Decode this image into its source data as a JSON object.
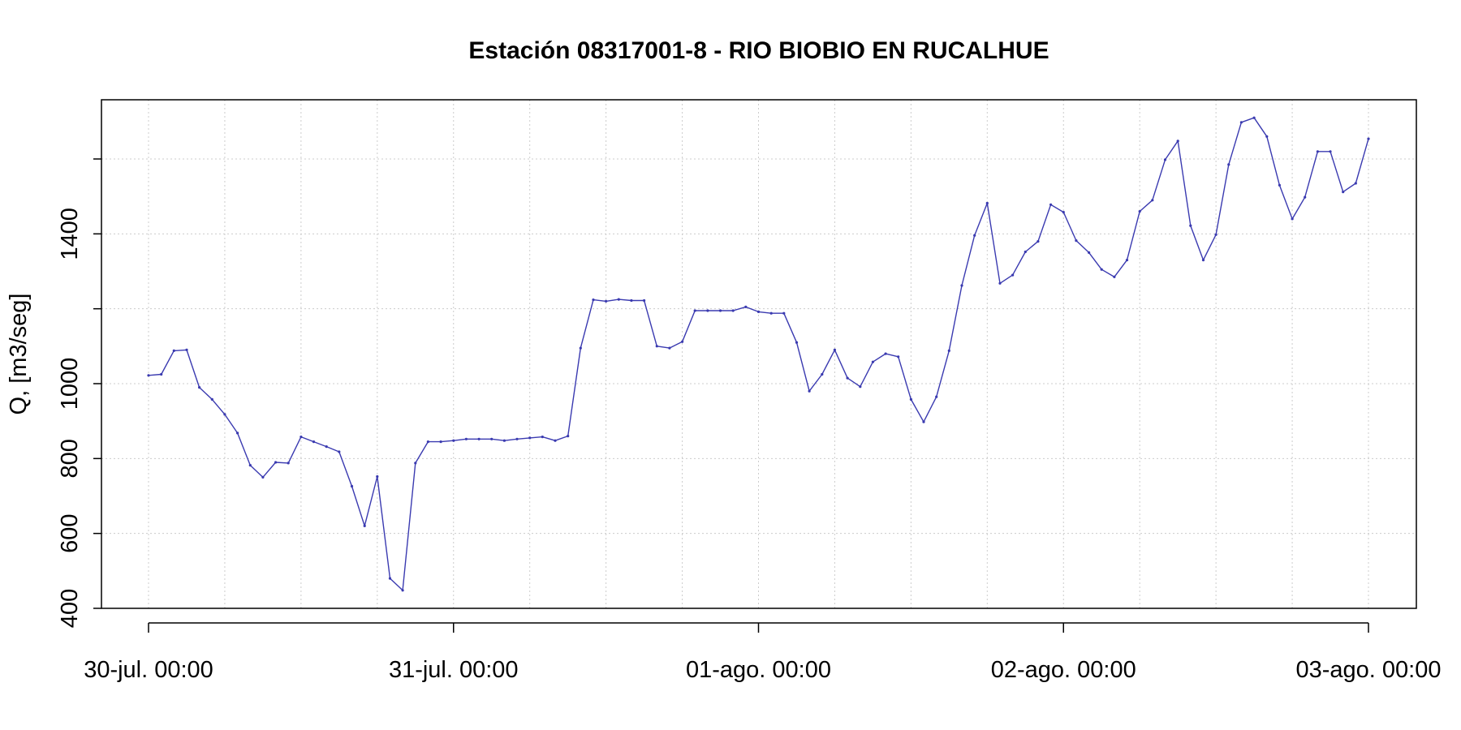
{
  "chart_data": {
    "type": "line",
    "title": "Estación 08317001-8 - RIO BIOBIO EN RUCALHUE",
    "xlabel": "",
    "ylabel": "Q, [m3/seg]",
    "ylim": [
      400,
      1750
    ],
    "yticks": [
      400,
      600,
      800,
      1000,
      1200,
      1400,
      1600
    ],
    "ytick_labels": [
      "400",
      "600",
      "800",
      "1000",
      "",
      "1400",
      ""
    ],
    "xlim": [
      "30-jul. 00:00",
      "03-ago. 00:00"
    ],
    "xtick_labels": [
      "30-jul. 00:00",
      "31-jul. 00:00",
      "01-ago. 00:00",
      "02-ago. 00:00",
      "03-ago. 00:00"
    ],
    "grid": true,
    "line_color": "#3a3ab0",
    "series": [
      {
        "name": "",
        "x": [
          "30-jul. 00:00",
          "30-jul. 01:00",
          "30-jul. 02:00",
          "30-jul. 03:00",
          "30-jul. 04:00",
          "30-jul. 05:00",
          "30-jul. 06:00",
          "30-jul. 07:00",
          "30-jul. 08:00",
          "30-jul. 09:00",
          "30-jul. 10:00",
          "30-jul. 11:00",
          "30-jul. 12:00",
          "30-jul. 13:00",
          "30-jul. 14:00",
          "30-jul. 15:00",
          "30-jul. 16:00",
          "30-jul. 17:00",
          "30-jul. 18:00",
          "30-jul. 19:00",
          "30-jul. 20:00",
          "30-jul. 21:00",
          "30-jul. 22:00",
          "30-jul. 23:00",
          "31-jul. 00:00",
          "31-jul. 01:00",
          "31-jul. 02:00",
          "31-jul. 03:00",
          "31-jul. 04:00",
          "31-jul. 05:00",
          "31-jul. 06:00",
          "31-jul. 07:00",
          "31-jul. 08:00",
          "31-jul. 09:00",
          "31-jul. 10:00",
          "31-jul. 11:00",
          "31-jul. 12:00",
          "31-jul. 13:00",
          "31-jul. 14:00",
          "31-jul. 15:00",
          "31-jul. 16:00",
          "31-jul. 17:00",
          "31-jul. 18:00",
          "31-jul. 19:00",
          "31-jul. 20:00",
          "31-jul. 21:00",
          "31-jul. 22:00",
          "31-jul. 23:00",
          "01-ago. 00:00",
          "01-ago. 01:00",
          "01-ago. 02:00",
          "01-ago. 03:00",
          "01-ago. 04:00",
          "01-ago. 05:00",
          "01-ago. 06:00",
          "01-ago. 07:00",
          "01-ago. 08:00",
          "01-ago. 09:00",
          "01-ago. 10:00",
          "01-ago. 11:00",
          "01-ago. 12:00",
          "01-ago. 13:00",
          "01-ago. 14:00",
          "01-ago. 15:00",
          "01-ago. 16:00",
          "01-ago. 17:00",
          "01-ago. 18:00",
          "01-ago. 19:00",
          "01-ago. 20:00",
          "01-ago. 21:00",
          "01-ago. 22:00",
          "01-ago. 23:00",
          "02-ago. 00:00",
          "02-ago. 01:00",
          "02-ago. 02:00",
          "02-ago. 03:00",
          "02-ago. 04:00",
          "02-ago. 05:00",
          "02-ago. 06:00",
          "02-ago. 07:00",
          "02-ago. 08:00",
          "02-ago. 09:00",
          "02-ago. 10:00",
          "02-ago. 11:00",
          "02-ago. 12:00",
          "02-ago. 13:00",
          "02-ago. 14:00",
          "02-ago. 15:00",
          "02-ago. 16:00",
          "02-ago. 17:00",
          "02-ago. 18:00",
          "02-ago. 19:00",
          "02-ago. 20:00",
          "02-ago. 21:00",
          "02-ago. 22:00",
          "02-ago. 23:00",
          "03-ago. 00:00"
        ],
        "values": [
          1022,
          1025,
          1088,
          1090,
          990,
          958,
          918,
          868,
          782,
          750,
          790,
          788,
          858,
          845,
          832,
          818,
          726,
          620,
          752,
          480,
          448,
          788,
          845,
          845,
          848,
          852,
          852,
          852,
          848,
          852,
          855,
          858,
          848,
          860,
          1095,
          1224,
          1220,
          1225,
          1222,
          1222,
          1100,
          1095,
          1112,
          1195,
          1195,
          1195,
          1195,
          1205,
          1192,
          1188,
          1188,
          1110,
          980,
          1025,
          1090,
          1015,
          992,
          1058,
          1080,
          1072,
          958,
          898,
          965,
          1088,
          1262,
          1396,
          1482,
          1268,
          1290,
          1352,
          1380,
          1478,
          1458,
          1382,
          1350,
          1305,
          1285,
          1330,
          1460,
          1490,
          1598,
          1648,
          1422,
          1330,
          1398,
          1585,
          1698,
          1710,
          1660,
          1530,
          1440,
          1498,
          1620,
          1620,
          1512,
          1535,
          1654
        ]
      }
    ]
  }
}
